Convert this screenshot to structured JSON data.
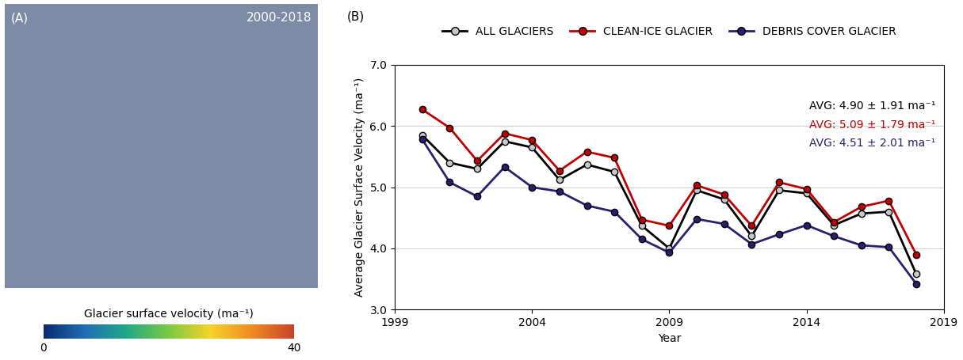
{
  "chart_data": [
    {
      "type": "map",
      "panel": "(A)",
      "period": "2000-2018",
      "colorbar": {
        "label": "Glacier surface velocity (ma⁻¹)",
        "range": [
          0,
          40
        ],
        "ticks": [
          0,
          40
        ]
      }
    },
    {
      "type": "line",
      "panel": "(B)",
      "xlabel": "Year",
      "ylabel": "Average Glacier Surface Velocity (ma⁻¹)",
      "x": [
        2000,
        2001,
        2002,
        2003,
        2004,
        2005,
        2006,
        2007,
        2008,
        2009,
        2010,
        2011,
        2012,
        2013,
        2014,
        2015,
        2016,
        2017,
        2018
      ],
      "series": [
        {
          "name": "ALL GLACIERS",
          "color": "#000000",
          "annotation": "AVG: 4.90 ± 1.91 ma⁻¹",
          "values": [
            5.85,
            5.4,
            5.3,
            5.75,
            5.65,
            5.12,
            5.37,
            5.25,
            4.37,
            4.0,
            4.95,
            4.8,
            4.2,
            4.95,
            4.9,
            4.38,
            4.57,
            4.6,
            3.58
          ]
        },
        {
          "name": "CLEAN-ICE GLACIER",
          "color": "#c00000",
          "annotation": "AVG: 5.09 ± 1.79 ma⁻¹",
          "values": [
            6.27,
            5.97,
            5.43,
            5.88,
            5.77,
            5.27,
            5.58,
            5.48,
            4.47,
            4.37,
            5.03,
            4.88,
            4.37,
            5.08,
            4.97,
            4.43,
            4.68,
            4.78,
            3.9
          ]
        },
        {
          "name": "DEBRIS COVER GLACIER",
          "color": "#2a1f6e",
          "annotation": "AVG: 4.51 ± 2.01 ma⁻¹",
          "values": [
            5.78,
            5.08,
            4.85,
            5.33,
            5.0,
            4.93,
            4.7,
            4.6,
            4.15,
            3.93,
            4.48,
            4.4,
            4.07,
            4.23,
            4.38,
            4.2,
            4.05,
            4.02,
            3.42
          ]
        }
      ],
      "xlim": [
        1999,
        2019
      ],
      "xticks": [
        1999,
        2004,
        2009,
        2014,
        2019
      ],
      "ylim": [
        3,
        7
      ],
      "yticks": [
        {
          "value": 3,
          "label": "3.0"
        },
        {
          "value": 4,
          "label": "4.0"
        },
        {
          "value": 5,
          "label": "5.0"
        },
        {
          "value": 6,
          "label": "6.0"
        },
        {
          "value": 7,
          "label": "7.0"
        }
      ],
      "grid": "y",
      "legend": "upper center",
      "marker": "o"
    }
  ]
}
